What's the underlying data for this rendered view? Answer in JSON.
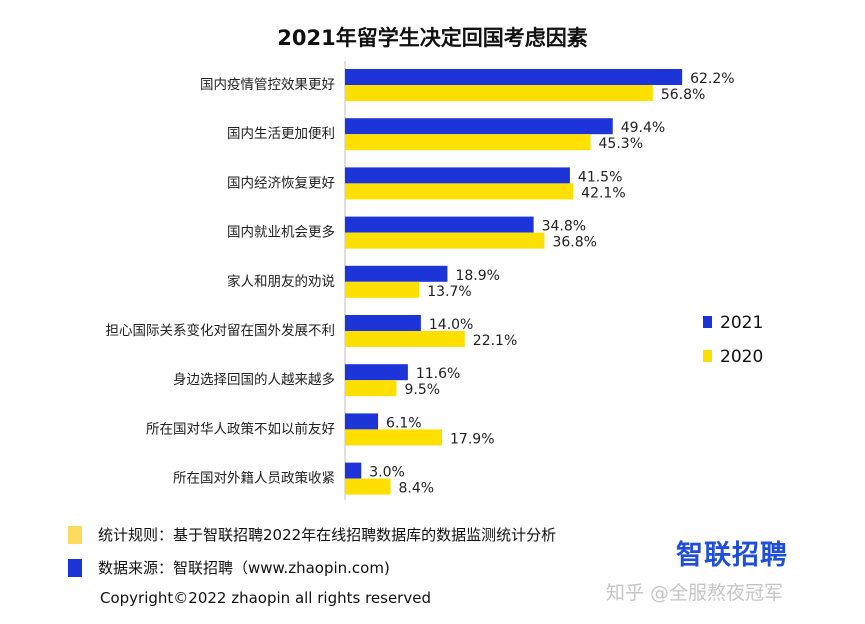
{
  "chart_data": {
    "type": "bar",
    "orientation": "horizontal",
    "title": "2021年留学生决定回国考虑因素",
    "categories": [
      "国内疫情管控效果更好",
      "国内生活更加便利",
      "国内经济恢复更好",
      "国内就业机会更多",
      "家人和朋友的劝说",
      "担心国际关系变化对留在国外发展不利",
      "身边选择回国的人越来越多",
      "所在国对华人政策不如以前友好",
      "所在国对外籍人员政策收紧"
    ],
    "series": [
      {
        "name": "2021",
        "color": "#1d35d8",
        "values": [
          62.2,
          49.4,
          41.5,
          34.8,
          18.9,
          14.0,
          11.6,
          6.1,
          3.0
        ],
        "labels": [
          "62.2%",
          "49.4%",
          "41.5%",
          "34.8%",
          "18.9%",
          "14.0%",
          "11.6%",
          "6.1%",
          "3.0%"
        ]
      },
      {
        "name": "2020",
        "color": "#fde000",
        "values": [
          56.8,
          45.3,
          42.1,
          36.8,
          13.7,
          22.1,
          9.5,
          17.9,
          8.4
        ],
        "labels": [
          "56.8%",
          "45.3%",
          "42.1%",
          "36.8%",
          "13.7%",
          "22.1%",
          "9.5%",
          "17.9%",
          "8.4%"
        ]
      }
    ],
    "xlim": [
      0,
      100
    ],
    "grid": false,
    "legend_position": "right"
  },
  "footer": {
    "rule": {
      "text": "统计规则：基于智联招聘2022年在线招聘数据库的数据监测统计分析",
      "color": "#fddb5e"
    },
    "source": {
      "text": "数据来源：智联招聘（www.zhaopin.com)",
      "color": "#1d35d8"
    },
    "copyright": "Copyright©2022 zhaopin all rights reserved"
  },
  "brand": {
    "logo_text": "智联招聘",
    "watermark": "知乎 @全服熬夜冠军"
  }
}
